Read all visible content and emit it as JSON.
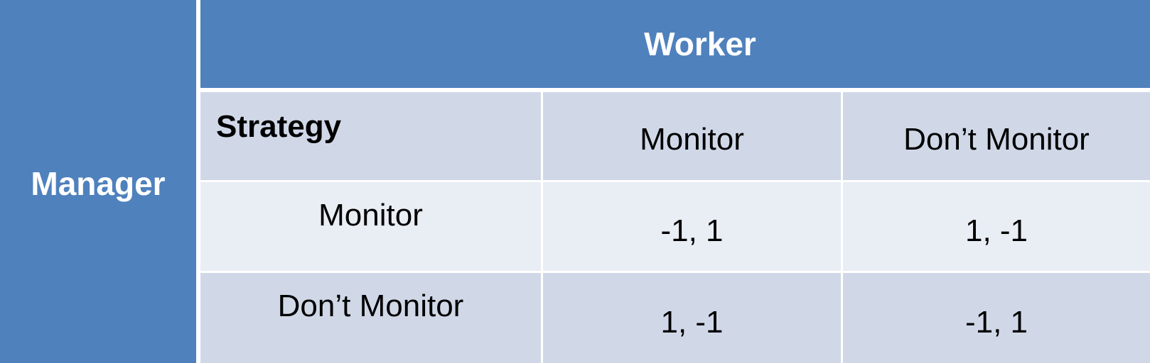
{
  "row_player": "Manager",
  "column_player": "Worker",
  "corner_label": "Strategy",
  "columns": [
    "Monitor",
    "Don’t Monitor"
  ],
  "rows": [
    {
      "label": "Monitor",
      "payoffs": [
        "-1, 1",
        "1, -1"
      ]
    },
    {
      "label": "Don’t Monitor",
      "payoffs": [
        "1, -1",
        "-1, 1"
      ]
    }
  ],
  "colors": {
    "header": "#4f81bd",
    "band_dark": "#d0d8e8",
    "band_light": "#e9edf4"
  }
}
